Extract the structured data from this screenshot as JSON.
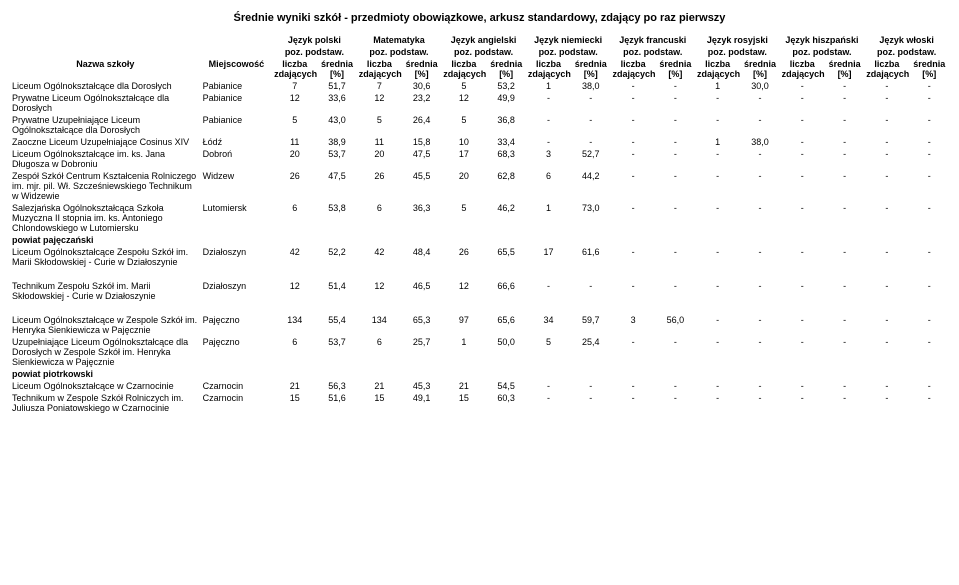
{
  "title": "Średnie wyniki szkół - przedmioty obowiązkowe, arkusz standardowy, zdający po raz pierwszy",
  "columns": {
    "school": "Nazwa szkoły",
    "locality": "Miejscowość",
    "languages": [
      "Język polski",
      "Matematyka",
      "Język angielski",
      "Język niemiecki",
      "Język francuski",
      "Język rosyjski",
      "Język hiszpański",
      "Język włoski"
    ],
    "sub_level": "poz. podstaw.",
    "sub_count": "liczba zdających",
    "sub_avg": "średnia [%]"
  },
  "sections": [
    {
      "group": null,
      "rows": [
        {
          "school": "Liceum Ogólnokształcące dla Dorosłych",
          "loc": "Pabianice",
          "vals": [
            "7",
            "51,7",
            "7",
            "30,6",
            "5",
            "53,2",
            "1",
            "38,0",
            "-",
            "-",
            "1",
            "30,0",
            "-",
            "-",
            "-",
            "-"
          ]
        },
        {
          "school": "Prywatne Liceum Ogólnokształcące dla Dorosłych",
          "loc": "Pabianice",
          "vals": [
            "12",
            "33,6",
            "12",
            "23,2",
            "12",
            "49,9",
            "-",
            "-",
            "-",
            "-",
            "-",
            "-",
            "-",
            "-",
            "-",
            "-"
          ]
        },
        {
          "school": "Prywatne Uzupełniające Liceum Ogólnokształcące dla Dorosłych",
          "loc": "Pabianice",
          "vals": [
            "5",
            "43,0",
            "5",
            "26,4",
            "5",
            "36,8",
            "-",
            "-",
            "-",
            "-",
            "-",
            "-",
            "-",
            "-",
            "-",
            "-"
          ]
        },
        {
          "school": "Zaoczne Liceum Uzupełniające Cosinus XIV",
          "loc": "Łódź",
          "vals": [
            "11",
            "38,9",
            "11",
            "15,8",
            "10",
            "33,4",
            "-",
            "-",
            "-",
            "-",
            "1",
            "38,0",
            "-",
            "-",
            "-",
            "-"
          ]
        },
        {
          "school": "Liceum Ogólnokształcące im. ks. Jana Długosza w Dobroniu",
          "loc": "Dobroń",
          "vals": [
            "20",
            "53,7",
            "20",
            "47,5",
            "17",
            "68,3",
            "3",
            "52,7",
            "-",
            "-",
            "-",
            "-",
            "-",
            "-",
            "-",
            "-"
          ]
        },
        {
          "school": "Zespół Szkół Centrum Kształcenia Rolniczego im. mjr. pil. Wł. Szcześniewskiego Technikum w Widzewie",
          "loc": "Widzew",
          "vals": [
            "26",
            "47,5",
            "26",
            "45,5",
            "20",
            "62,8",
            "6",
            "44,2",
            "-",
            "-",
            "-",
            "-",
            "-",
            "-",
            "-",
            "-"
          ]
        },
        {
          "school": "Salezjańska Ogólnokształcąca Szkoła Muzyczna II stopnia im. ks. Antoniego Chlondowskiego w Lutomiersku",
          "loc": "Lutomiersk",
          "vals": [
            "6",
            "53,8",
            "6",
            "36,3",
            "5",
            "46,2",
            "1",
            "73,0",
            "-",
            "-",
            "-",
            "-",
            "-",
            "-",
            "-",
            "-"
          ]
        }
      ]
    },
    {
      "group": "powiat pajęczański",
      "rows": [
        {
          "school": "Liceum Ogólnokształcące Zespołu Szkół  im. Marii Skłodowskiej - Curie w Działoszynie",
          "loc": "Działoszyn",
          "vals": [
            "42",
            "52,2",
            "42",
            "48,4",
            "26",
            "65,5",
            "17",
            "61,6",
            "-",
            "-",
            "-",
            "-",
            "-",
            "-",
            "-",
            "-"
          ]
        },
        {
          "spacer": true
        },
        {
          "school": "Technikum Zespołu Szkół im. Marii Skłodowskiej - Curie w Działoszynie",
          "loc": "Działoszyn",
          "vals": [
            "12",
            "51,4",
            "12",
            "46,5",
            "12",
            "66,6",
            "-",
            "-",
            "-",
            "-",
            "-",
            "-",
            "-",
            "-",
            "-",
            "-"
          ]
        },
        {
          "spacer": true
        },
        {
          "school": "Liceum Ogólnokształcące w Zespole Szkół im. Henryka Sienkiewicza w Pajęcznie",
          "loc": "Pajęczno",
          "vals": [
            "134",
            "55,4",
            "134",
            "65,3",
            "97",
            "65,6",
            "34",
            "59,7",
            "3",
            "56,0",
            "-",
            "-",
            "-",
            "-",
            "-",
            "-"
          ]
        },
        {
          "school": "Uzupełniające Liceum Ogólnokształcące dla Dorosłych w Zespole Szkół im. Henryka Sienkiewicza w Pajęcznie",
          "loc": "Pajęczno",
          "vals": [
            "6",
            "53,7",
            "6",
            "25,7",
            "1",
            "50,0",
            "5",
            "25,4",
            "-",
            "-",
            "-",
            "-",
            "-",
            "-",
            "-",
            "-"
          ]
        }
      ]
    },
    {
      "group": "powiat piotrkowski",
      "rows": [
        {
          "school": "Liceum Ogólnokształcące w Czarnocinie",
          "loc": "Czarnocin",
          "vals": [
            "21",
            "56,3",
            "21",
            "45,3",
            "21",
            "54,5",
            "-",
            "-",
            "-",
            "-",
            "-",
            "-",
            "-",
            "-",
            "-",
            "-"
          ]
        },
        {
          "school": "Technikum w Zespole Szkół Rolniczych im. Juliusza Poniatowskiego w Czarnocinie",
          "loc": "Czarnocin",
          "vals": [
            "15",
            "51,6",
            "15",
            "49,1",
            "15",
            "60,3",
            "-",
            "-",
            "-",
            "-",
            "-",
            "-",
            "-",
            "-",
            "-",
            "-"
          ]
        }
      ]
    }
  ]
}
